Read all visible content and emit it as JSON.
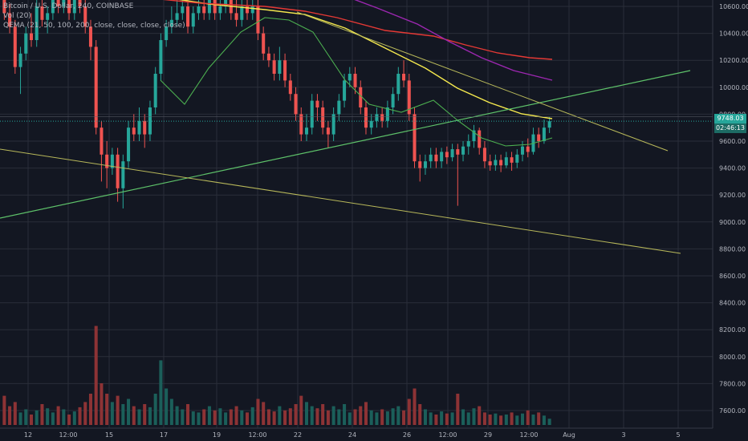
{
  "legend": {
    "symbol_line": "Bitcoin / U.S. Dollar, 240, COINBASE",
    "volume_line": "Vol (20)",
    "qema_line": "QEMA (21, 50, 100, 200, close, close, close, close)"
  },
  "price_badge": "9748.03",
  "timer_badge": "02:46:13",
  "colors": {
    "background": "#131722",
    "grid": "#2a2e39",
    "up": "#26a69a",
    "down": "#ef5350",
    "vol_up": "#1b5f5a",
    "vol_down": "#8d3335",
    "ema21": "#4caf50",
    "ema50": "#f5e94e",
    "ema100": "#9c27b0",
    "ema200": "#e53935",
    "trendline_green": "#5ec26a",
    "trendline_olive": "#b8b85a"
  },
  "chart_data": {
    "type": "candlestick",
    "price_axis_ticks": [
      "10600.00",
      "10400.00",
      "10200.00",
      "10000.00",
      "9800.00",
      "9600.00",
      "9400.00",
      "9200.00",
      "9000.00",
      "8800.00",
      "8600.00",
      "8400.00",
      "8200.00",
      "8000.00",
      "7800.00",
      "7600.00"
    ],
    "time_axis_ticks": [
      "12",
      "12:00",
      "15",
      "17",
      "19",
      "12:00",
      "22",
      "24",
      "26",
      "12:00",
      "29",
      "12:00",
      "Aug",
      "3",
      "5"
    ],
    "ylim": [
      7500,
      10650
    ],
    "last_price": 9748.03,
    "candles": [
      [
        10650,
        10550,
        10700,
        10500
      ],
      [
        10550,
        10450,
        10620,
        10400
      ],
      [
        10450,
        10150,
        10500,
        10100
      ],
      [
        10150,
        10250,
        10300,
        9950
      ],
      [
        10250,
        10400,
        10450,
        10200
      ],
      [
        10400,
        10350,
        10550,
        10300
      ],
      [
        10350,
        10600,
        10650,
        10300
      ],
      [
        10600,
        10500,
        10700,
        10450
      ],
      [
        10500,
        10550,
        10600,
        10400
      ],
      [
        10550,
        10650,
        10700,
        10500
      ],
      [
        10650,
        10600,
        10750,
        10550
      ],
      [
        10600,
        10650,
        10700,
        10550
      ],
      [
        10650,
        10550,
        10700,
        10500
      ],
      [
        10550,
        10650,
        10700,
        10500
      ],
      [
        10650,
        10600,
        10750,
        10550
      ],
      [
        10600,
        10450,
        10650,
        10400
      ],
      [
        10450,
        10300,
        10500,
        10200
      ],
      [
        10300,
        9700,
        10350,
        9650
      ],
      [
        9700,
        9500,
        9750,
        9300
      ],
      [
        9500,
        9400,
        9600,
        9250
      ],
      [
        9400,
        9500,
        9550,
        9350
      ],
      [
        9500,
        9250,
        9550,
        9150
      ],
      [
        9250,
        9450,
        9500,
        9100
      ],
      [
        9450,
        9700,
        9750,
        9400
      ],
      [
        9700,
        9650,
        9800,
        9600
      ],
      [
        9650,
        9750,
        9850,
        9600
      ],
      [
        9750,
        9650,
        9800,
        9550
      ],
      [
        9650,
        9850,
        9900,
        9600
      ],
      [
        9850,
        10100,
        10150,
        9800
      ],
      [
        10100,
        10350,
        10400,
        10050
      ],
      [
        10350,
        10450,
        10500,
        10300
      ],
      [
        10450,
        10500,
        10600,
        10400
      ],
      [
        10500,
        10550,
        10650,
        10450
      ],
      [
        10550,
        10600,
        10700,
        10500
      ],
      [
        10600,
        10450,
        10650,
        10400
      ],
      [
        10450,
        10550,
        10600,
        10400
      ],
      [
        10550,
        10600,
        10650,
        10500
      ],
      [
        10600,
        10550,
        10700,
        10500
      ],
      [
        10550,
        10650,
        10700,
        10500
      ],
      [
        10650,
        10550,
        10700,
        10500
      ],
      [
        10550,
        10600,
        10650,
        10500
      ],
      [
        10600,
        10650,
        10700,
        10550
      ],
      [
        10650,
        10550,
        10700,
        10500
      ],
      [
        10550,
        10500,
        10650,
        10450
      ],
      [
        10500,
        10600,
        10650,
        10450
      ],
      [
        10600,
        10550,
        10650,
        10500
      ],
      [
        10550,
        10600,
        10650,
        10500
      ],
      [
        10600,
        10400,
        10650,
        10350
      ],
      [
        10400,
        10250,
        10450,
        10200
      ],
      [
        10250,
        10200,
        10300,
        10150
      ],
      [
        10200,
        10100,
        10250,
        10050
      ],
      [
        10100,
        10200,
        10300,
        10050
      ],
      [
        10200,
        10050,
        10250,
        10000
      ],
      [
        10050,
        9950,
        10100,
        9900
      ],
      [
        9950,
        9800,
        10000,
        9750
      ],
      [
        9800,
        9650,
        9850,
        9600
      ],
      [
        9650,
        9700,
        9800,
        9600
      ],
      [
        9700,
        9900,
        9950,
        9650
      ],
      [
        9900,
        9850,
        9950,
        9750
      ],
      [
        9850,
        9700,
        9900,
        9650
      ],
      [
        9700,
        9650,
        9750,
        9550
      ],
      [
        9650,
        9800,
        9850,
        9600
      ],
      [
        9800,
        9900,
        9950,
        9750
      ],
      [
        9900,
        10050,
        10100,
        9850
      ],
      [
        10050,
        10100,
        10150,
        10000
      ],
      [
        10100,
        10000,
        10150,
        9950
      ],
      [
        10000,
        9850,
        10050,
        9800
      ],
      [
        9850,
        9700,
        9900,
        9650
      ],
      [
        9700,
        9750,
        9800,
        9650
      ],
      [
        9750,
        9800,
        9850,
        9700
      ],
      [
        9800,
        9750,
        9850,
        9700
      ],
      [
        9750,
        9850,
        9900,
        9700
      ],
      [
        9850,
        9950,
        10000,
        9800
      ],
      [
        9950,
        10100,
        10150,
        9900
      ],
      [
        10100,
        10050,
        10200,
        10000
      ],
      [
        10050,
        9800,
        10100,
        9750
      ],
      [
        9800,
        9450,
        9850,
        9400
      ],
      [
        9450,
        9400,
        9500,
        9300
      ],
      [
        9400,
        9450,
        9500,
        9350
      ],
      [
        9450,
        9500,
        9550,
        9400
      ],
      [
        9500,
        9450,
        9550,
        9400
      ],
      [
        9450,
        9520,
        9550,
        9400
      ],
      [
        9520,
        9480,
        9560,
        9430
      ],
      [
        9480,
        9540,
        9580,
        9450
      ],
      [
        9540,
        9500,
        9580,
        9120
      ],
      [
        9500,
        9560,
        9600,
        9450
      ],
      [
        9560,
        9600,
        9650,
        9500
      ],
      [
        9600,
        9680,
        9720,
        9550
      ],
      [
        9680,
        9550,
        9700,
        9500
      ],
      [
        9550,
        9450,
        9600,
        9400
      ],
      [
        9450,
        9420,
        9500,
        9380
      ],
      [
        9420,
        9460,
        9500,
        9380
      ],
      [
        9460,
        9420,
        9500,
        9370
      ],
      [
        9420,
        9480,
        9520,
        9400
      ],
      [
        9480,
        9440,
        9520,
        9380
      ],
      [
        9440,
        9500,
        9540,
        9400
      ],
      [
        9500,
        9560,
        9600,
        9450
      ],
      [
        9560,
        9520,
        9620,
        9480
      ],
      [
        9520,
        9650,
        9700,
        9500
      ],
      [
        9650,
        9600,
        9700,
        9550
      ],
      [
        9600,
        9700,
        9760,
        9580
      ],
      [
        9700,
        9748,
        9780,
        9660
      ]
    ],
    "volumes": [
      0.28,
      0.18,
      0.22,
      0.12,
      0.15,
      0.1,
      0.14,
      0.2,
      0.16,
      0.12,
      0.18,
      0.15,
      0.1,
      0.13,
      0.17,
      0.22,
      0.3,
      0.95,
      0.4,
      0.3,
      0.22,
      0.28,
      0.2,
      0.25,
      0.18,
      0.15,
      0.2,
      0.17,
      0.3,
      0.62,
      0.35,
      0.25,
      0.18,
      0.15,
      0.2,
      0.13,
      0.12,
      0.15,
      0.18,
      0.14,
      0.16,
      0.12,
      0.15,
      0.18,
      0.14,
      0.12,
      0.17,
      0.25,
      0.22,
      0.15,
      0.13,
      0.18,
      0.14,
      0.16,
      0.2,
      0.28,
      0.22,
      0.18,
      0.16,
      0.2,
      0.14,
      0.18,
      0.15,
      0.2,
      0.12,
      0.15,
      0.18,
      0.22,
      0.14,
      0.12,
      0.15,
      0.13,
      0.16,
      0.18,
      0.14,
      0.25,
      0.35,
      0.2,
      0.15,
      0.12,
      0.1,
      0.13,
      0.11,
      0.12,
      0.3,
      0.15,
      0.12,
      0.16,
      0.18,
      0.12,
      0.1,
      0.11,
      0.09,
      0.1,
      0.12,
      0.09,
      0.11,
      0.14,
      0.1,
      0.12,
      0.09,
      0.06
    ]
  }
}
